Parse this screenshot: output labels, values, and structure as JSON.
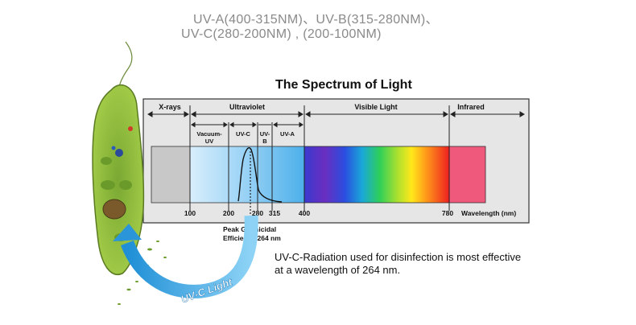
{
  "captions": {
    "line1": "UV-A(400-315NM)、UV-B(315-280NM)、",
    "line2": "UV-C(280-200NM) , (200-100NM)"
  },
  "diagram": {
    "title": "The Spectrum of Light",
    "bands_top": {
      "xrays": "X-rays",
      "ultraviolet": "Ultraviolet",
      "visible": "Visible Light",
      "infrared": "Infrared"
    },
    "bands_sub": {
      "vacuum_uv_1": "Vacuum-",
      "vacuum_uv_2": "UV",
      "uvc": "UV-C",
      "uvb_1": "UV-",
      "uvb_2": "B",
      "uva": "UV-A"
    },
    "ticks": [
      "100",
      "200",
      "280",
      "315",
      "400",
      "780"
    ],
    "axis_label": "Wavelength (nm)",
    "peak_line1": "Peak Germicidal",
    "peak_line2": "Efficiency 264 nm",
    "uvc_light_label": "UV-C Light",
    "note_line1": "UV-C-Radiation used for disinfection is most effective",
    "note_line2": "at a wavelength of 264 nm."
  },
  "colors": {
    "panel": "#e6e6e6",
    "xray_band": "#c8c8c8",
    "uv_light": "#cfe9fb",
    "uv_mid": "#5cb8ec",
    "infrared": "#ef5a7c",
    "arrow": "#58b4e8",
    "organism": "#9ccc3c"
  }
}
